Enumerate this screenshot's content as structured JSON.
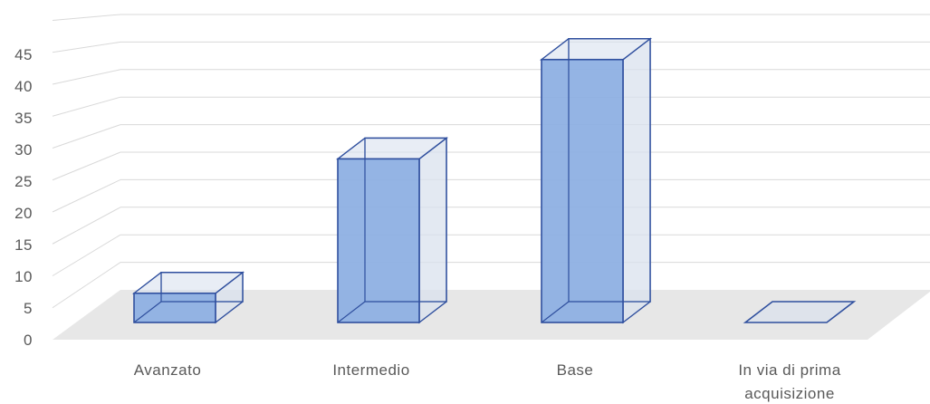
{
  "chart_data": {
    "type": "bar",
    "style": "3d-column",
    "categories": [
      "Avanzato",
      "Intermedio",
      "Base",
      "In via di prima acquisizione"
    ],
    "values": [
      5,
      28,
      45,
      0
    ],
    "ylim": [
      0,
      50
    ],
    "yticks": [
      0,
      5,
      10,
      15,
      20,
      25,
      30,
      35,
      40,
      45
    ],
    "grid": true,
    "legend": "none",
    "title": "",
    "xlabel": "",
    "ylabel": "",
    "colors": {
      "bar_front": "#8eb0e3",
      "bar_side": "#d9e1ee",
      "bar_top": "#d9e1ee",
      "bar_edge": "#2f4f9e",
      "floor": "#e7e7e7",
      "grid": "#d9d9d9",
      "text": "#595959"
    }
  }
}
